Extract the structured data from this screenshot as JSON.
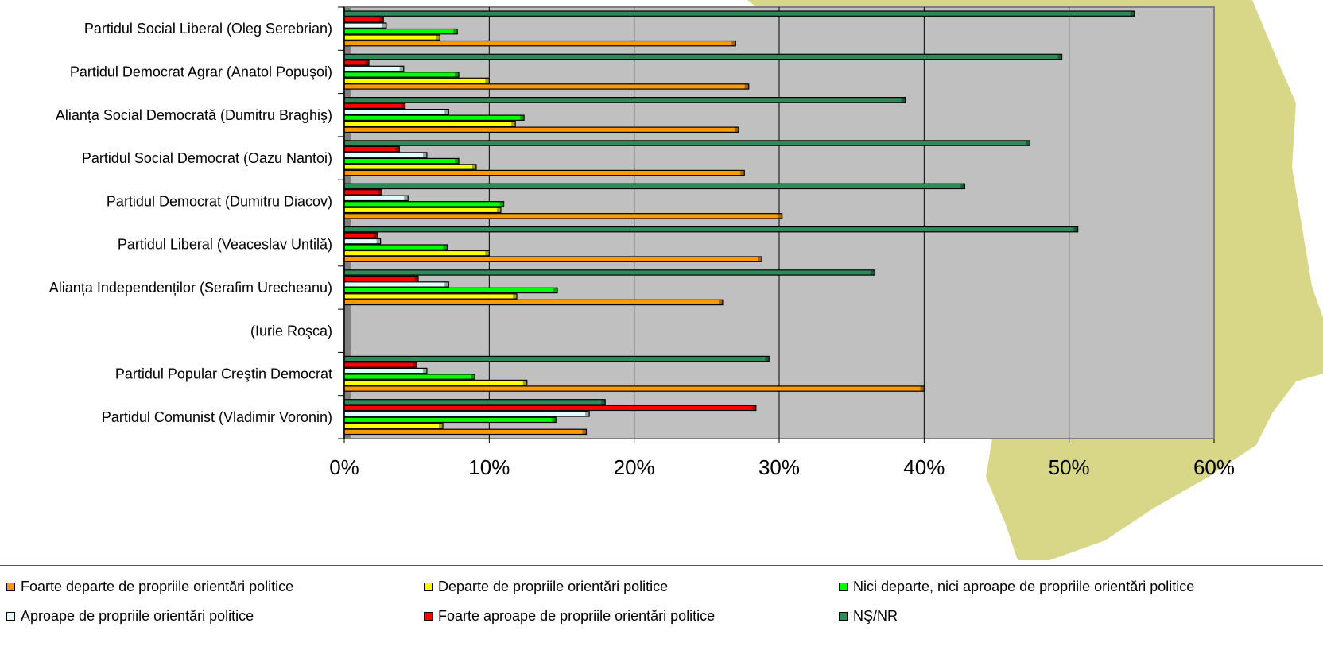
{
  "chart_data": {
    "type": "bar",
    "orientation": "horizontal",
    "categories": [
      "Partidul Social Liberal (Oleg Serebrian)",
      "Partidul Democrat Agrar (Anatol Popuşoi)",
      "Alianța Social Democrată (Dumitru Braghiş)",
      "Partidul Social Democrat (Oazu Nantoi)",
      "Partidul Democrat (Dumitru Diacov)",
      "Partidul Liberal (Veaceslav Untilă)",
      "Alianța Independenților (Serafim Urecheanu)",
      "(Iurie Roşca)",
      "Partidul Popular Creştin Democrat",
      "Partidul Comunist (Vladimir Voronin)"
    ],
    "series": [
      {
        "name": "NŞ/NR",
        "color": "#2e8b57",
        "values": [
          54.5,
          49.5,
          38.7,
          47.3,
          42.8,
          50.6,
          36.6,
          null,
          29.3,
          18.0
        ]
      },
      {
        "name": "Foarte aproape de propriile orientări politice",
        "color": "#ff0000",
        "values": [
          2.7,
          1.7,
          4.2,
          3.8,
          2.6,
          2.3,
          5.1,
          null,
          5.0,
          28.4
        ]
      },
      {
        "name": "Aproape de propriile orientări politice",
        "color": "#e0ffff",
        "values": [
          2.9,
          4.1,
          7.2,
          5.7,
          4.4,
          2.5,
          7.2,
          null,
          5.7,
          16.9
        ]
      },
      {
        "name": "Nici departe, nici aproape de propriile orientări politice",
        "color": "#00ff00",
        "values": [
          7.8,
          7.9,
          12.4,
          7.9,
          11.0,
          7.1,
          14.7,
          null,
          9.0,
          14.6
        ]
      },
      {
        "name": "Departe de propriile orientări politice",
        "color": "#ffff00",
        "values": [
          6.6,
          10.0,
          11.8,
          9.1,
          10.8,
          10.0,
          11.9,
          null,
          12.6,
          6.8
        ]
      },
      {
        "name": "Foarte departe de propriile orientări politice",
        "color": "#ff9900",
        "values": [
          27.0,
          27.9,
          27.2,
          27.6,
          30.2,
          28.8,
          26.1,
          null,
          40.0,
          16.7
        ]
      }
    ],
    "xlim": [
      0,
      60
    ],
    "x_ticks": [
      "0%",
      "10%",
      "20%",
      "30%",
      "40%",
      "50%",
      "60%"
    ],
    "grid": true,
    "legend_position": "bottom",
    "colors": {
      "plot_background": "#c0c0c0",
      "map_shape": "#d4d17a"
    }
  },
  "legend": {
    "row1": [
      {
        "label": "Foarte departe de propriile orientări politice",
        "color": "#ff9900"
      },
      {
        "label": "Departe de propriile orientări politice",
        "color": "#ffff00"
      },
      {
        "label": "Nici departe, nici aproape de propriile orientări politice",
        "color": "#00ff00"
      }
    ],
    "row2": [
      {
        "label": "Aproape de propriile orientări politice",
        "color": "#e0ffff"
      },
      {
        "label": "Foarte aproape de propriile orientări politice",
        "color": "#ff0000"
      },
      {
        "label": "NŞ/NR",
        "color": "#2e8b57"
      }
    ]
  }
}
